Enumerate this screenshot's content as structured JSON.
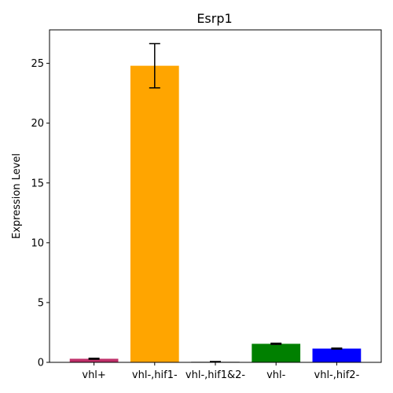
{
  "chart_data": {
    "type": "bar",
    "title": "Esrp1",
    "xlabel": "",
    "ylabel": "Expression Level",
    "ylim": [
      0,
      27.8
    ],
    "yticks": [
      0,
      5,
      10,
      15,
      20,
      25
    ],
    "grid": false,
    "legend": "none",
    "categories": [
      "vhl+",
      "vhl-,hif1-",
      "vhl-,hif1&2-",
      "vhl-",
      "vhl-,hif2-"
    ],
    "values": [
      0.3,
      24.8,
      0.05,
      1.55,
      1.15
    ],
    "errors": [
      0.04,
      1.85,
      0.02,
      0.05,
      0.04
    ],
    "colors": [
      "#c0306a",
      "#ffa500",
      "#7a7a7a",
      "#008000",
      "#0000ff"
    ]
  }
}
